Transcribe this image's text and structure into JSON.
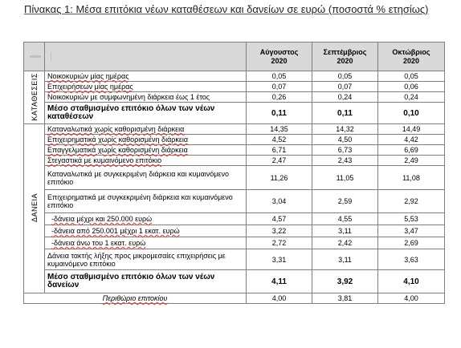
{
  "caption": "Πίνακας 1: Μέσα επιτόκια νέων καταθέσεων και δανείων σε ευρώ (ποσοστά % ετησίως)",
  "columns": [
    {
      "month": "Αύγουστος",
      "year": "2020"
    },
    {
      "month": "Σεπτέμβριος",
      "year": "2020"
    },
    {
      "month": "Οκτώβριος",
      "year": "2020"
    }
  ],
  "sections": {
    "deposits": "ΚΑΤΑΘΕΣΕΙΣ",
    "loans": "ΔΑΝΕΙΑ"
  },
  "deposit_rows": [
    {
      "label": "Νοικοκυριών μίας ημέρας",
      "values": [
        "0,05",
        "0,05",
        "0,05"
      ],
      "bold": false
    },
    {
      "label": "Επιχειρήσεων μίας ημέρας",
      "values": [
        "0,07",
        "0,07",
        "0,06"
      ],
      "bold": false
    },
    {
      "label": "Νοικοκυριών με συμφωνημένη διάρκεια έως 1 έτος",
      "values": [
        "0,26",
        "0,24",
        "0,24"
      ],
      "bold": false
    },
    {
      "label": "Μέσο σταθμισμένο επιτόκιο όλων των νέων καταθέσεων",
      "values": [
        "0,11",
        "0,11",
        "0,10"
      ],
      "bold": true
    }
  ],
  "loan_rows": [
    {
      "label": "Καταναλωτικά χωρίς καθορισμένη διάρκεια",
      "values": [
        "14,35",
        "14,32",
        "14,49"
      ],
      "bold": false
    },
    {
      "label": "Επιχειρηματικά χωρίς καθορισμένη διάρκεια",
      "values": [
        "4,52",
        "4,50",
        "4,42"
      ],
      "bold": false
    },
    {
      "label": "Επαγγελματικά χωρίς καθορισμένη διάρκεια",
      "values": [
        "6,71",
        "6,73",
        "6,69"
      ],
      "bold": false
    },
    {
      "label": "Στεγαστικά με κυμαινόμενο επιτόκιο",
      "values": [
        "2,47",
        "2,43",
        "2,49"
      ],
      "bold": false
    },
    {
      "label": "Καταναλωτικά με συγκεκριμένη διάρκεια και κυμαινόμενο επιτόκιο",
      "values": [
        "11,26",
        "11,05",
        "11,08"
      ],
      "bold": false
    },
    {
      "label": "Επιχειρηματικά με συγκεκριμένη διάρκεια και κυμαινόμενο επιτόκιο",
      "values": [
        "3,04",
        "2,59",
        "2,92"
      ],
      "bold": false
    },
    {
      "label": "-δάνεια μέχρι και 250.000 ευρώ",
      "values": [
        "4,57",
        "4,55",
        "5,53"
      ],
      "bold": false
    },
    {
      "label": "-δάνεια από 250.001 μέχρι 1 εκατ. ευρώ",
      "values": [
        "3,22",
        "3,11",
        "3,47"
      ],
      "bold": false
    },
    {
      "label": "-δάνεια άνω του 1 εκατ. ευρώ",
      "values": [
        "2,72",
        "2,42",
        "2,69"
      ],
      "bold": false
    },
    {
      "label": "Δάνεια τακτής λήξης προς μικρομεσαίες επιχειρήσεις με κυμαινόμενο επιτόκιο",
      "values": [
        "3,31",
        "3,11",
        "3,63"
      ],
      "bold": false
    },
    {
      "label": "Μέσο σταθμισμένο επιτόκιο όλων των νέων δανείων",
      "values": [
        "4,11",
        "3,92",
        "4,10"
      ],
      "bold": true
    }
  ],
  "margin_row": {
    "label": "Περιθώριο επιτοκίου",
    "values": [
      "4,00",
      "3,81",
      "4,00"
    ]
  }
}
